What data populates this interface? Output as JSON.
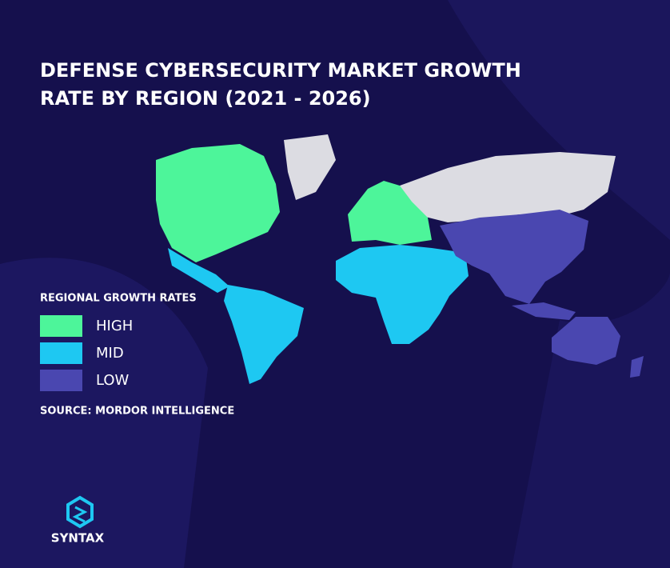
{
  "header": {
    "title_lines": [
      "DEFENSE CYBERSECURITY MARKET GROWTH",
      "RATE BY REGION (2021 - 2026)"
    ]
  },
  "legend": {
    "title": "REGIONAL GROWTH RATES",
    "items": [
      {
        "label": "HIGH",
        "color": "#4df59a"
      },
      {
        "label": "MID",
        "color": "#1ec8f2"
      },
      {
        "label": "LOW",
        "color": "#4a47b0"
      }
    ]
  },
  "source": "SOURCE: MORDOR INTELLIGENCE",
  "logo": {
    "name": "SYNTAX"
  }
}
